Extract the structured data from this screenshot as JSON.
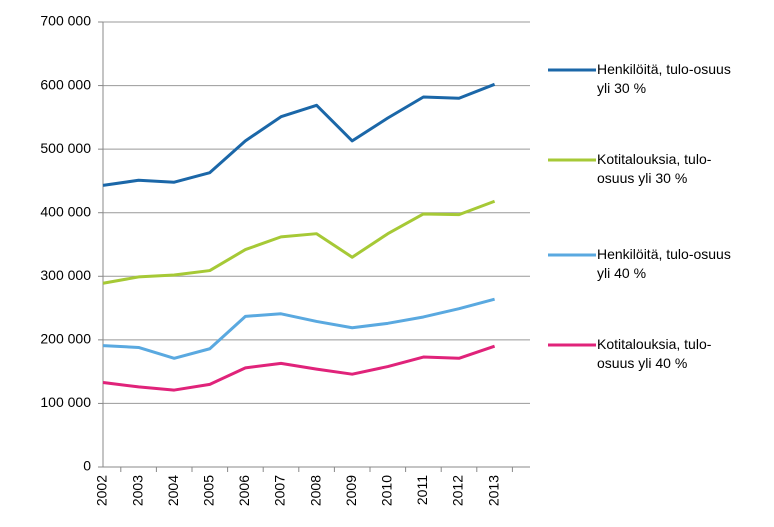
{
  "chart_data": {
    "type": "line",
    "categories": [
      "2002",
      "2003",
      "2004",
      "2005",
      "2006",
      "2007",
      "2008",
      "2009",
      "2010",
      "2011",
      "2012",
      "2013"
    ],
    "series": [
      {
        "name": "Henkilöitä, tulo-osuus yli 30 %",
        "color": "#1b67a8",
        "values": [
          443000,
          451000,
          448000,
          463000,
          513000,
          551000,
          569000,
          513000,
          549000,
          582000,
          580000,
          602000
        ]
      },
      {
        "name": "Kotitalouksia, tulo-osuus yli 30 %",
        "color": "#a6c936",
        "values": [
          289000,
          299000,
          302000,
          309000,
          342000,
          362000,
          367000,
          330000,
          367000,
          398000,
          397000,
          418000
        ]
      },
      {
        "name": "Henkilöitä, tulo-osuus yli 40 %",
        "color": "#5aa9e0",
        "values": [
          191000,
          188000,
          171000,
          186000,
          237000,
          241000,
          229000,
          219000,
          226000,
          236000,
          249000,
          264000
        ]
      },
      {
        "name": "Kotitalouksia, tulo-osuus yli 40 %",
        "color": "#e0237a",
        "values": [
          133000,
          126000,
          121000,
          130000,
          156000,
          163000,
          154000,
          146000,
          158000,
          173000,
          171000,
          190000
        ]
      }
    ],
    "ylim": [
      0,
      700000
    ],
    "yticks": [
      0,
      {
        "value": 100000,
        "label": "100 000"
      },
      {
        "value": 200000,
        "label": "200 000"
      },
      {
        "value": 300000,
        "label": "300 000"
      },
      {
        "value": 400000,
        "label": "400 000"
      },
      {
        "value": 500000,
        "label": "500 000"
      },
      {
        "value": 600000,
        "label": "600 000"
      },
      {
        "value": 700000,
        "label": "700 000"
      }
    ],
    "grid": true,
    "legend": "right"
  }
}
